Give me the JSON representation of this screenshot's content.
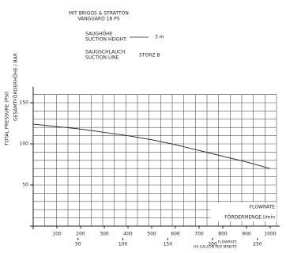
{
  "chart_data": {
    "type": "line",
    "header": [
      "MIT BRIGGS & STRATTON",
      "VANGUARD 18 PS"
    ],
    "suction_height_label": [
      "SAUGHÖHE",
      "SUCTION HEIGHT:"
    ],
    "suction_height": "3 m",
    "suction_line_label": [
      "SAUGSCHLAUCH",
      "SUCTION LINE"
    ],
    "suction_line": "STORZ B",
    "y_label": "TOTAL PRESSURE (PSI)",
    "y2_label": "GESAMTFÖRDERHÖHE / BAR",
    "x_label": "FÖRDERMENGE l/min",
    "x_label_en": "FLOWRATE",
    "x2_label": [
      "FLOWRATE",
      "US GALLON PER MINUTE"
    ],
    "x": [
      0,
      100,
      200,
      300,
      400,
      500,
      600,
      700,
      800,
      900,
      1000
    ],
    "series": [
      {
        "name": "STORZ B",
        "color": "#333333",
        "values": [
          124,
          121,
          118,
          114,
          110,
          105,
          99,
          92,
          85,
          78,
          70
        ]
      }
    ],
    "xlim": [
      0,
      1000
    ],
    "xticks": [
      100,
      200,
      300,
      400,
      500,
      600,
      700,
      800,
      900,
      1000
    ],
    "x2lim": [
      0,
      264.2
    ],
    "x2ticks": [
      50,
      100,
      150,
      200,
      250
    ],
    "ylim": [
      0,
      160
    ],
    "yticks": [
      50,
      100,
      150
    ],
    "grid": true
  }
}
